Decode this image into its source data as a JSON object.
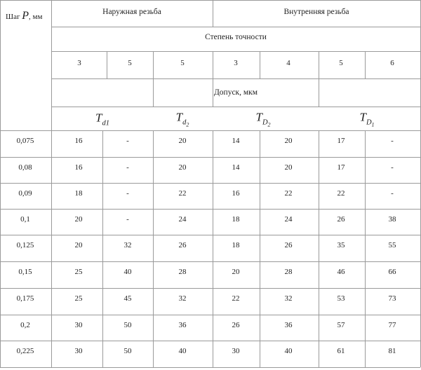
{
  "header": {
    "pitch_label": "Шаг",
    "pitch_symbol": "P",
    "pitch_unit": ", мм",
    "external_thread": "Наружная резьба",
    "internal_thread": "Внутренняя резьба",
    "accuracy_degree": "Степень точности",
    "tolerance": "Допуск, мкм",
    "grades": [
      "3",
      "5",
      "5",
      "3",
      "4",
      "5",
      "6"
    ],
    "symbols": {
      "td1": {
        "base": "T",
        "sub": "d1"
      },
      "td2": {
        "base": "T",
        "sub": "d",
        "subsub": "2"
      },
      "tD2": {
        "base": "T",
        "sub": "D",
        "subsub": "2"
      },
      "tD1": {
        "base": "T",
        "sub": "D",
        "subsub": "1"
      }
    }
  },
  "rows": [
    {
      "pitch": "0,075",
      "values": [
        "16",
        "-",
        "20",
        "14",
        "20",
        "17",
        "-"
      ]
    },
    {
      "pitch": "0,08",
      "values": [
        "16",
        "-",
        "20",
        "14",
        "20",
        "17",
        "-"
      ]
    },
    {
      "pitch": "0,09",
      "values": [
        "18",
        "-",
        "22",
        "16",
        "22",
        "22",
        "-"
      ]
    },
    {
      "pitch": "0,1",
      "values": [
        "20",
        "-",
        "24",
        "18",
        "24",
        "26",
        "38"
      ]
    },
    {
      "pitch": "0,125",
      "values": [
        "20",
        "32",
        "26",
        "18",
        "26",
        "35",
        "55"
      ]
    },
    {
      "pitch": "0,15",
      "values": [
        "25",
        "40",
        "28",
        "20",
        "28",
        "46",
        "66"
      ]
    },
    {
      "pitch": "0,175",
      "values": [
        "25",
        "45",
        "32",
        "22",
        "32",
        "53",
        "73"
      ]
    },
    {
      "pitch": "0,2",
      "values": [
        "30",
        "50",
        "36",
        "26",
        "36",
        "57",
        "77"
      ]
    },
    {
      "pitch": "0,225",
      "values": [
        "30",
        "50",
        "40",
        "30",
        "40",
        "61",
        "81"
      ]
    }
  ]
}
